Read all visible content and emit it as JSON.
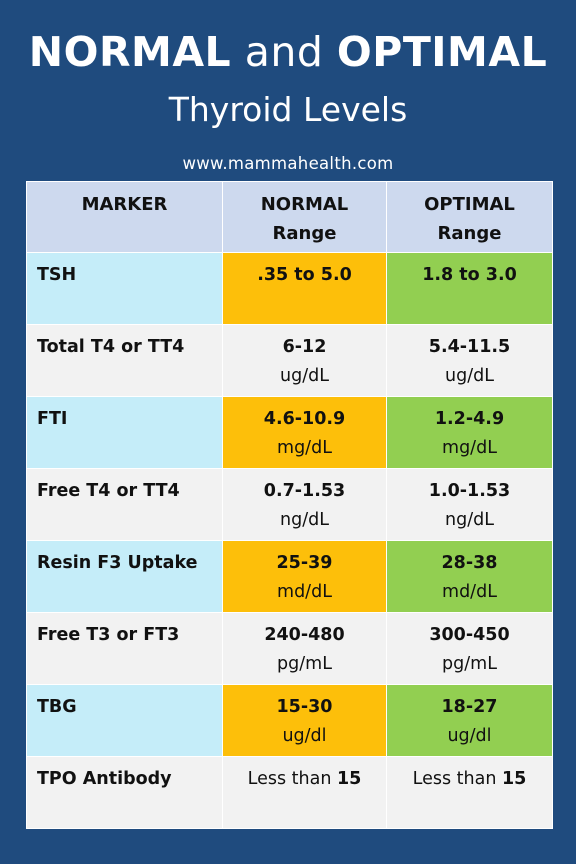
{
  "header": {
    "title_part1": "NORMAL",
    "title_and": "and",
    "title_part2": "OPTIMAL",
    "subtitle": "Thyroid Levels",
    "url": "www.mammahealth.com"
  },
  "table": {
    "columns": {
      "marker": "MARKER",
      "normal_line1": "NORMAL",
      "normal_line2": "Range",
      "optimal_line1": "OPTIMAL",
      "optimal_line2": "Range"
    },
    "rows": [
      {
        "marker": "TSH",
        "normal": ".35 to 5.0",
        "normal_unit": "",
        "optimal": "1.8 to 3.0",
        "optimal_unit": ""
      },
      {
        "marker": "Total T4 or TT4",
        "normal": "6-12",
        "normal_unit": "ug/dL",
        "optimal": "5.4-11.5",
        "optimal_unit": "ug/dL"
      },
      {
        "marker": "FTI",
        "normal": "4.6-10.9",
        "normal_unit": "mg/dL",
        "optimal": "1.2-4.9",
        "optimal_unit": "mg/dL"
      },
      {
        "marker": "Free T4 or TT4",
        "normal": "0.7-1.53",
        "normal_unit": "ng/dL",
        "optimal": "1.0-1.53",
        "optimal_unit": "ng/dL"
      },
      {
        "marker": "Resin F3 Uptake",
        "normal": "25-39",
        "normal_unit": "md/dL",
        "optimal": "28-38",
        "optimal_unit": "md/dL"
      },
      {
        "marker": "Free T3 or FT3",
        "normal": "240-480",
        "normal_unit": "pg/mL",
        "optimal": "300-450",
        "optimal_unit": "pg/mL"
      },
      {
        "marker": "TBG",
        "normal": "15-30",
        "normal_unit": "ug/dl",
        "optimal": "18-27",
        "optimal_unit": "ug/dl"
      }
    ],
    "last_row": {
      "marker": "TPO Antibody",
      "normal_prefix": "Less than",
      "normal_value": "15",
      "optimal_prefix": "Less than",
      "optimal_value": "15"
    }
  },
  "colors": {
    "background": "#1f4b7e",
    "header_row": "#cdd9ee",
    "highlight_marker": "#c5edf9",
    "normal_highlight": "#fdbf0a",
    "optimal_highlight": "#92cf51",
    "plain_row": "#f2f2f2"
  }
}
